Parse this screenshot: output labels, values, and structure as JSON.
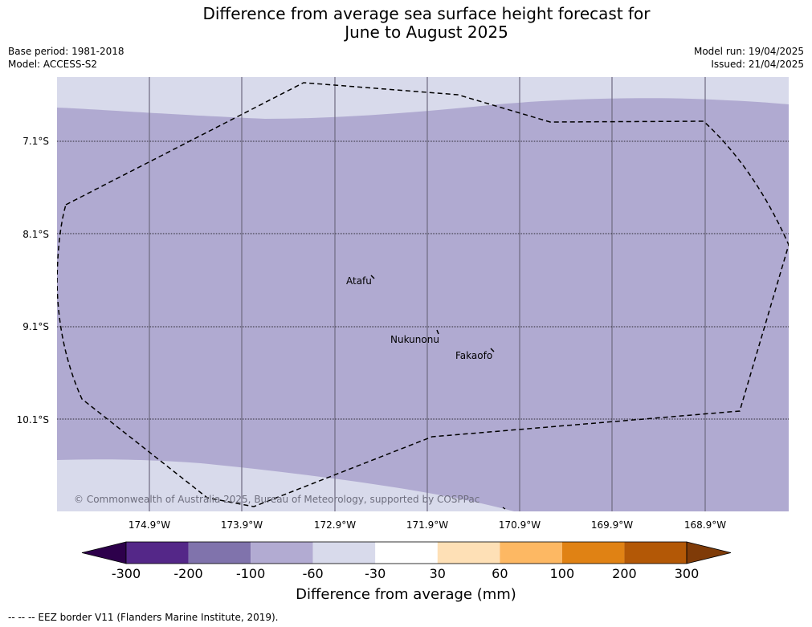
{
  "header": {
    "title_line1": "Difference from average sea surface height forecast for",
    "title_line2": "June to August 2025",
    "base_period": "Base period: 1981-2018",
    "model": "Model: ACCESS-S2",
    "model_run": "Model run: 19/04/2025",
    "issued": "Issued: 21/04/2025"
  },
  "map": {
    "lat_labels": [
      "7.1°S",
      "8.1°S",
      "9.1°S",
      "10.1°S"
    ],
    "lon_labels": [
      "174.9°W",
      "173.9°W",
      "172.9°W",
      "171.9°W",
      "170.9°W",
      "169.9°W",
      "168.9°W"
    ],
    "places": [
      "Atafu",
      "Nukunonu",
      "Fakaofo"
    ],
    "copyright": "© Commonwealth of Australia 2025, Bureau of Meteorology, supported by COSPPac",
    "fill_main_category": "-100 to -60",
    "fill_edge_category": "-60 to -30"
  },
  "colorbar": {
    "title": "Difference from average (mm)",
    "ticks": [
      "-300",
      "-200",
      "-100",
      "-60",
      "-30",
      "30",
      "60",
      "100",
      "200",
      "300"
    ],
    "colors": [
      "#2d004b",
      "#542788",
      "#8073ac",
      "#b2abd2",
      "#d8daeb",
      "#ffffff",
      "#fee0b6",
      "#fdb863",
      "#e08214",
      "#b35806",
      "#7f3b08"
    ]
  },
  "footer": {
    "legend": "--  --  -- EEZ border V11 (Flanders Marine Institute, 2019)."
  }
}
